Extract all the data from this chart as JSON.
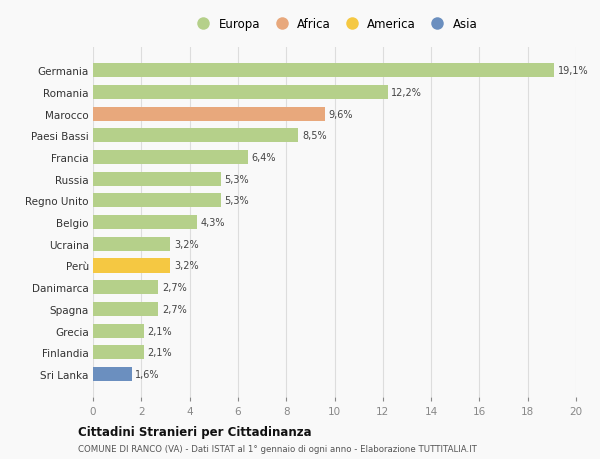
{
  "countries": [
    "Germania",
    "Romania",
    "Marocco",
    "Paesi Bassi",
    "Francia",
    "Russia",
    "Regno Unito",
    "Belgio",
    "Ucraina",
    "Perù",
    "Danimarca",
    "Spagna",
    "Grecia",
    "Finlandia",
    "Sri Lanka"
  ],
  "values": [
    19.1,
    12.2,
    9.6,
    8.5,
    6.4,
    5.3,
    5.3,
    4.3,
    3.2,
    3.2,
    2.7,
    2.7,
    2.1,
    2.1,
    1.6
  ],
  "labels": [
    "19,1%",
    "12,2%",
    "9,6%",
    "8,5%",
    "6,4%",
    "5,3%",
    "5,3%",
    "4,3%",
    "3,2%",
    "3,2%",
    "2,7%",
    "2,7%",
    "2,1%",
    "2,1%",
    "1,6%"
  ],
  "colors": [
    "#b5d08a",
    "#b5d08a",
    "#e8a87c",
    "#b5d08a",
    "#b5d08a",
    "#b5d08a",
    "#b5d08a",
    "#b5d08a",
    "#b5d08a",
    "#f5c842",
    "#b5d08a",
    "#b5d08a",
    "#b5d08a",
    "#b5d08a",
    "#6b8fbf"
  ],
  "legend_labels": [
    "Europa",
    "Africa",
    "America",
    "Asia"
  ],
  "legend_colors": [
    "#b5d08a",
    "#e8a87c",
    "#f5c842",
    "#6b8fbf"
  ],
  "xlim": [
    0,
    20
  ],
  "xticks": [
    0,
    2,
    4,
    6,
    8,
    10,
    12,
    14,
    16,
    18,
    20
  ],
  "title": "Cittadini Stranieri per Cittadinanza",
  "subtitle": "COMUNE DI RANCO (VA) - Dati ISTAT al 1° gennaio di ogni anno - Elaborazione TUTTITALIA.IT",
  "bg_color": "#f9f9f9",
  "grid_color": "#dddddd",
  "bar_height": 0.65
}
